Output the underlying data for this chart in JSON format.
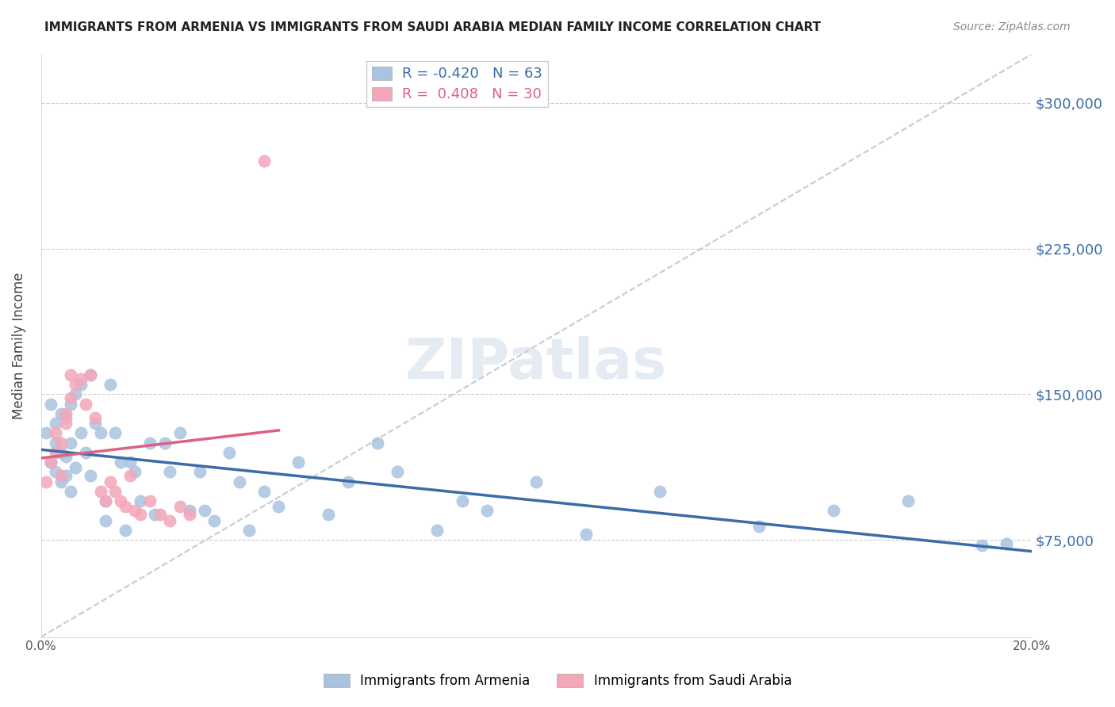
{
  "title": "IMMIGRANTS FROM ARMENIA VS IMMIGRANTS FROM SAUDI ARABIA MEDIAN FAMILY INCOME CORRELATION CHART",
  "source": "Source: ZipAtlas.com",
  "xlabel_bottom": "",
  "ylabel": "Median Family Income",
  "xlim": [
    0.0,
    0.2
  ],
  "ylim": [
    25000,
    325000
  ],
  "xticks": [
    0.0,
    0.04,
    0.08,
    0.12,
    0.16,
    0.2
  ],
  "xtick_labels": [
    "0.0%",
    "",
    "",
    "",
    "",
    "20.0%"
  ],
  "yticks_right": [
    75000,
    150000,
    225000,
    300000
  ],
  "ytick_labels_right": [
    "$75,000",
    "$150,000",
    "$225,000",
    "$300,000"
  ],
  "armenia_color": "#a8c4e0",
  "saudi_color": "#f4a7b9",
  "armenia_line_color": "#3b6ca8",
  "saudi_line_color": "#e06080",
  "diagonal_color": "#c8c8d8",
  "legend_R1": "R = -0.420",
  "legend_N1": "N = 63",
  "legend_R2": "R =  0.408",
  "legend_N2": "N = 30",
  "watermark": "ZIPatlas",
  "legend_label1": "Immigrants from Armenia",
  "legend_label2": "Immigrants from Saudi Arabia",
  "armenia_x": [
    0.001,
    0.002,
    0.002,
    0.003,
    0.003,
    0.003,
    0.004,
    0.004,
    0.004,
    0.005,
    0.005,
    0.005,
    0.006,
    0.006,
    0.006,
    0.007,
    0.007,
    0.008,
    0.008,
    0.009,
    0.01,
    0.01,
    0.011,
    0.012,
    0.013,
    0.013,
    0.014,
    0.015,
    0.016,
    0.017,
    0.018,
    0.019,
    0.02,
    0.022,
    0.023,
    0.025,
    0.026,
    0.028,
    0.03,
    0.032,
    0.033,
    0.035,
    0.038,
    0.04,
    0.042,
    0.045,
    0.048,
    0.052,
    0.058,
    0.062,
    0.068,
    0.072,
    0.08,
    0.085,
    0.09,
    0.1,
    0.11,
    0.125,
    0.145,
    0.16,
    0.175,
    0.19,
    0.195
  ],
  "armenia_y": [
    130000,
    145000,
    115000,
    135000,
    125000,
    110000,
    140000,
    120000,
    105000,
    138000,
    118000,
    108000,
    145000,
    125000,
    100000,
    150000,
    112000,
    155000,
    130000,
    120000,
    160000,
    108000,
    135000,
    130000,
    95000,
    85000,
    155000,
    130000,
    115000,
    80000,
    115000,
    110000,
    95000,
    125000,
    88000,
    125000,
    110000,
    130000,
    90000,
    110000,
    90000,
    85000,
    120000,
    105000,
    80000,
    100000,
    92000,
    115000,
    88000,
    105000,
    125000,
    110000,
    80000,
    95000,
    90000,
    105000,
    78000,
    100000,
    82000,
    90000,
    95000,
    72000,
    73000
  ],
  "saudi_x": [
    0.001,
    0.002,
    0.003,
    0.003,
    0.004,
    0.004,
    0.005,
    0.005,
    0.006,
    0.006,
    0.007,
    0.008,
    0.009,
    0.01,
    0.011,
    0.012,
    0.013,
    0.014,
    0.015,
    0.016,
    0.017,
    0.018,
    0.019,
    0.02,
    0.022,
    0.024,
    0.026,
    0.028,
    0.03,
    0.045
  ],
  "saudi_y": [
    105000,
    115000,
    130000,
    120000,
    125000,
    108000,
    140000,
    135000,
    160000,
    148000,
    155000,
    158000,
    145000,
    160000,
    138000,
    100000,
    95000,
    105000,
    100000,
    95000,
    92000,
    108000,
    90000,
    88000,
    95000,
    88000,
    85000,
    92000,
    88000,
    270000
  ]
}
